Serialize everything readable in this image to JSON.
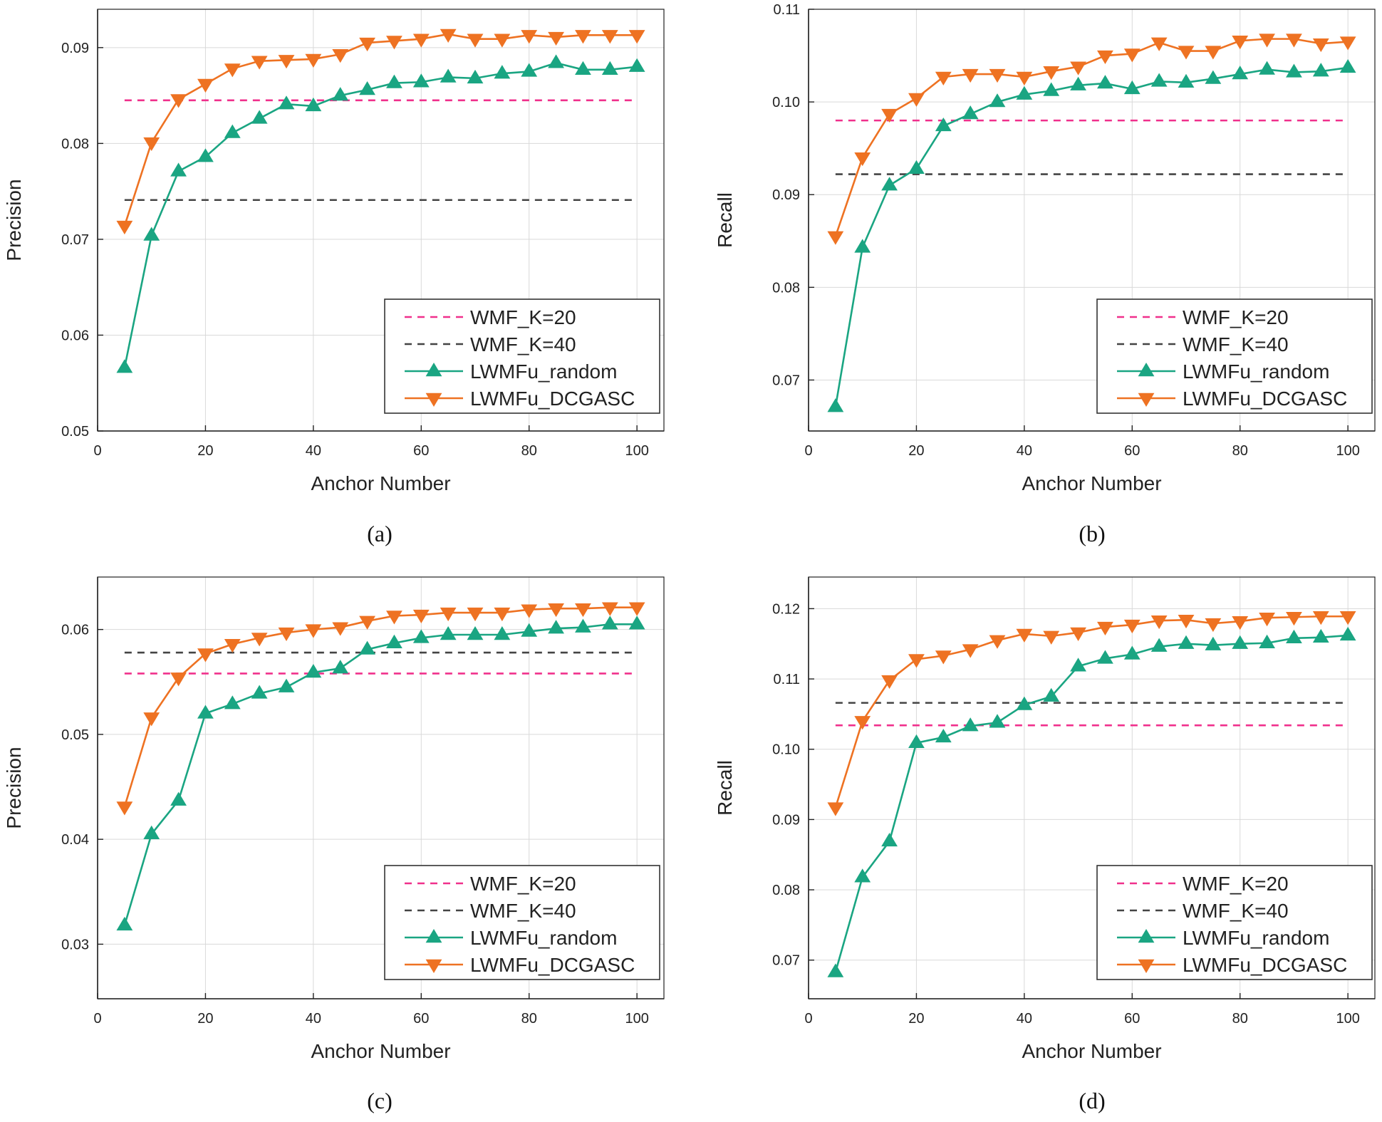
{
  "figure": {
    "captions": [
      "(a)",
      "(b)",
      "(c)",
      "(d)"
    ]
  },
  "colors": {
    "wmf20": "#f0308c",
    "wmf40": "#444444",
    "random": "#1aa582",
    "dcgasc": "#ee7222",
    "grid": "#d9d9d9"
  },
  "chart_data": [
    {
      "type": "line",
      "title": "(a)",
      "xlabel": "Anchor Number",
      "ylabel": "Precision",
      "xlim": [
        0,
        105
      ],
      "ylim": [
        0.05,
        0.094
      ],
      "xticks": [
        0,
        20,
        40,
        60,
        80,
        100
      ],
      "xtick_labels": [
        "0",
        "20",
        "40",
        "60",
        "80",
        "100"
      ],
      "yticks": [
        0.05,
        0.06,
        0.07,
        0.08,
        0.09
      ],
      "ytick_labels": [
        "0.05",
        "0.06",
        "0.07",
        "0.08",
        "0.09"
      ],
      "legend_position": "bottom-right",
      "x": [
        5,
        10,
        15,
        20,
        25,
        30,
        35,
        40,
        45,
        50,
        55,
        60,
        65,
        70,
        75,
        80,
        85,
        90,
        95,
        100
      ],
      "series": [
        {
          "name": "WMF_K=20",
          "style": "dashed",
          "constant": 0.0845
        },
        {
          "name": "WMF_K=40",
          "style": "dashed",
          "constant": 0.0741
        },
        {
          "name": "LWMFu_random",
          "style": "up-triangle",
          "values": [
            0.0566,
            0.0704,
            0.0771,
            0.0786,
            0.0811,
            0.0826,
            0.0841,
            0.0839,
            0.085,
            0.0856,
            0.0863,
            0.0864,
            0.0869,
            0.0868,
            0.0873,
            0.0875,
            0.0884,
            0.0877,
            0.0877,
            0.088
          ]
        },
        {
          "name": "LWMFu_DCGASC",
          "style": "down-triangle",
          "values": [
            0.0714,
            0.0801,
            0.0846,
            0.0862,
            0.0878,
            0.0886,
            0.0887,
            0.0888,
            0.0893,
            0.0905,
            0.0907,
            0.0909,
            0.0914,
            0.0909,
            0.0909,
            0.0913,
            0.0911,
            0.0913,
            0.0913,
            0.0913
          ]
        }
      ]
    },
    {
      "type": "line",
      "title": "(b)",
      "xlabel": "Anchor Number",
      "ylabel": "Recall",
      "xlim": [
        0,
        105
      ],
      "ylim": [
        0.0645,
        0.11
      ],
      "xticks": [
        0,
        20,
        40,
        60,
        80,
        100
      ],
      "xtick_labels": [
        "0",
        "20",
        "40",
        "60",
        "80",
        "100"
      ],
      "yticks": [
        0.07,
        0.08,
        0.09,
        0.1,
        0.11
      ],
      "ytick_labels": [
        "0.07",
        "0.08",
        "0.09",
        "0.10",
        "0.11"
      ],
      "legend_position": "bottom-right",
      "x": [
        5,
        10,
        15,
        20,
        25,
        30,
        35,
        40,
        45,
        50,
        55,
        60,
        65,
        70,
        75,
        80,
        85,
        90,
        95,
        100
      ],
      "series": [
        {
          "name": "WMF_K=20",
          "style": "dashed",
          "constant": 0.098
        },
        {
          "name": "WMF_K=40",
          "style": "dashed",
          "constant": 0.0922
        },
        {
          "name": "LWMFu_random",
          "style": "up-triangle",
          "values": [
            0.0671,
            0.0843,
            0.091,
            0.0928,
            0.0974,
            0.0987,
            0.1,
            0.1008,
            0.1012,
            0.1018,
            0.102,
            0.1014,
            0.1022,
            0.1021,
            0.1025,
            0.103,
            0.1035,
            0.1032,
            0.1033,
            0.1037
          ]
        },
        {
          "name": "LWMFu_DCGASC",
          "style": "down-triangle",
          "values": [
            0.0855,
            0.094,
            0.0987,
            0.1004,
            0.1027,
            0.103,
            0.103,
            0.1027,
            0.1033,
            0.1038,
            0.105,
            0.1052,
            0.1064,
            0.1055,
            0.1055,
            0.1066,
            0.1068,
            0.1068,
            0.1063,
            0.1065
          ]
        }
      ]
    },
    {
      "type": "line",
      "title": "(c)",
      "xlabel": "Anchor Number",
      "ylabel": "Precision",
      "xlim": [
        0,
        105
      ],
      "ylim": [
        0.0248,
        0.065
      ],
      "xticks": [
        0,
        20,
        40,
        60,
        80,
        100
      ],
      "xtick_labels": [
        "0",
        "20",
        "40",
        "60",
        "80",
        "100"
      ],
      "yticks": [
        0.03,
        0.04,
        0.05,
        0.06
      ],
      "ytick_labels": [
        "0.03",
        "0.04",
        "0.05",
        "0.06"
      ],
      "legend_position": "bottom-right",
      "x": [
        5,
        10,
        15,
        20,
        25,
        30,
        35,
        40,
        45,
        50,
        55,
        60,
        65,
        70,
        75,
        80,
        85,
        90,
        95,
        100
      ],
      "series": [
        {
          "name": "WMF_K=20",
          "style": "dashed",
          "constant": 0.0558
        },
        {
          "name": "WMF_K=40",
          "style": "dashed",
          "constant": 0.0578
        },
        {
          "name": "LWMFu_random",
          "style": "up-triangle",
          "values": [
            0.0318,
            0.0405,
            0.0437,
            0.052,
            0.0529,
            0.0539,
            0.0545,
            0.0559,
            0.0563,
            0.0581,
            0.0587,
            0.0592,
            0.0595,
            0.0595,
            0.0595,
            0.0598,
            0.0601,
            0.0602,
            0.0605,
            0.0605
          ]
        },
        {
          "name": "LWMFu_DCGASC",
          "style": "down-triangle",
          "values": [
            0.0431,
            0.0516,
            0.0554,
            0.0577,
            0.0586,
            0.0592,
            0.0597,
            0.06,
            0.0602,
            0.0608,
            0.0613,
            0.0614,
            0.0616,
            0.0616,
            0.0616,
            0.0619,
            0.062,
            0.062,
            0.0621,
            0.0621
          ]
        }
      ]
    },
    {
      "type": "line",
      "title": "(d)",
      "xlabel": "Anchor Number",
      "ylabel": "Recall",
      "xlim": [
        0,
        105
      ],
      "ylim": [
        0.0645,
        0.1245
      ],
      "xticks": [
        0,
        20,
        40,
        60,
        80,
        100
      ],
      "xtick_labels": [
        "0",
        "20",
        "40",
        "60",
        "80",
        "100"
      ],
      "yticks": [
        0.07,
        0.08,
        0.09,
        0.1,
        0.11,
        0.12
      ],
      "ytick_labels": [
        "0.07",
        "0.08",
        "0.09",
        "0.10",
        "0.11",
        "0.12"
      ],
      "legend_position": "bottom-right",
      "x": [
        5,
        10,
        15,
        20,
        25,
        30,
        35,
        40,
        45,
        50,
        55,
        60,
        65,
        70,
        75,
        80,
        85,
        90,
        95,
        100
      ],
      "series": [
        {
          "name": "WMF_K=20",
          "style": "dashed",
          "constant": 0.1034
        },
        {
          "name": "WMF_K=40",
          "style": "dashed",
          "constant": 0.1066
        },
        {
          "name": "LWMFu_random",
          "style": "up-triangle",
          "values": [
            0.0683,
            0.0818,
            0.0869,
            0.1009,
            0.1017,
            0.1033,
            0.1038,
            0.1063,
            0.1075,
            0.1118,
            0.1129,
            0.1135,
            0.1146,
            0.115,
            0.1148,
            0.115,
            0.1151,
            0.1158,
            0.1159,
            0.1162
          ]
        },
        {
          "name": "LWMFu_DCGASC",
          "style": "down-triangle",
          "values": [
            0.0917,
            0.104,
            0.1098,
            0.1128,
            0.1133,
            0.1142,
            0.1155,
            0.1164,
            0.1161,
            0.1166,
            0.1174,
            0.1177,
            0.1183,
            0.1184,
            0.1179,
            0.1182,
            0.1187,
            0.1188,
            0.1189,
            0.1189
          ]
        }
      ]
    }
  ]
}
